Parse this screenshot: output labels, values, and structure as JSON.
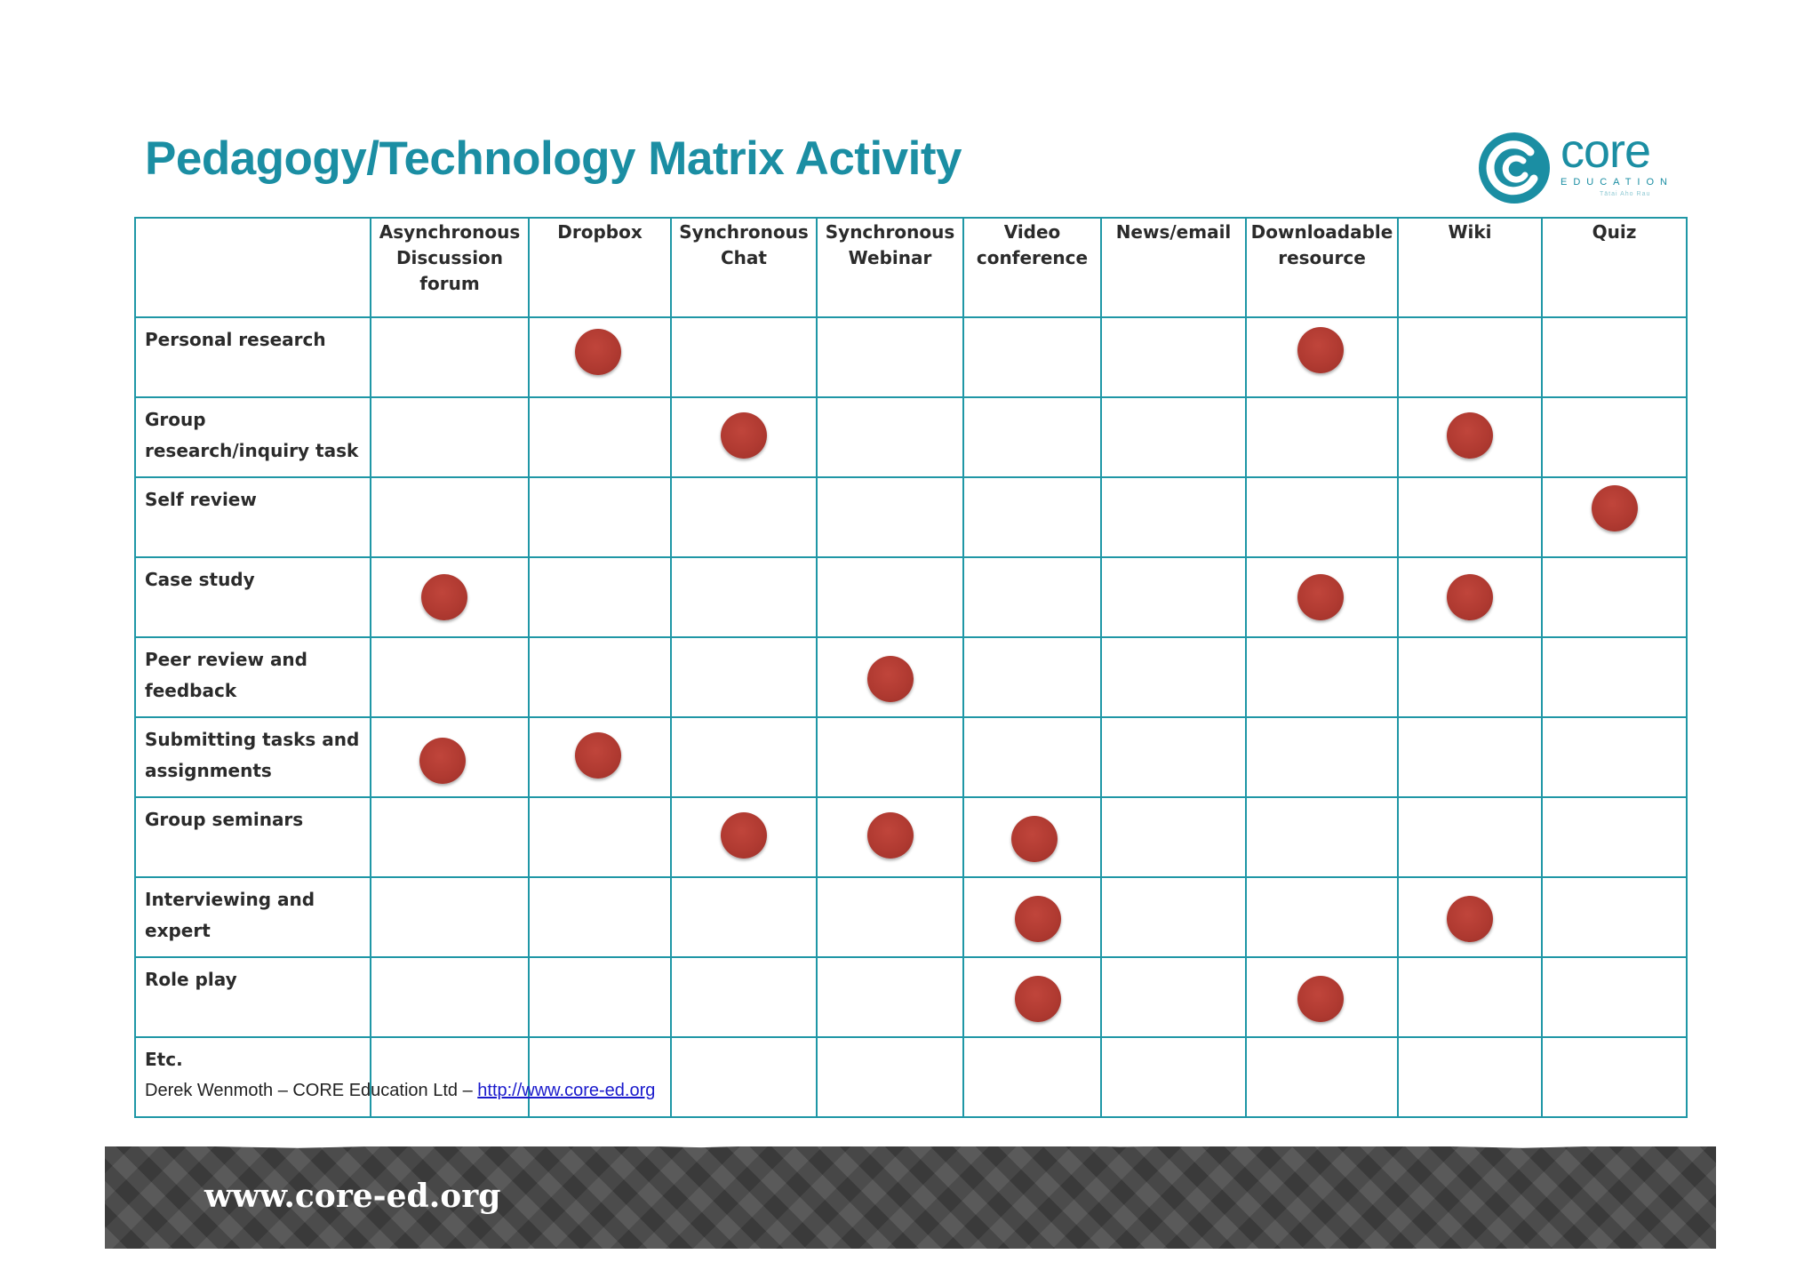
{
  "title": "Pedagogy/Technology Matrix Activity",
  "logo": {
    "word": "core",
    "sub": "EDUCATION",
    "tagline": "Tātai Aho Rau"
  },
  "columns": [
    "Asynchronous Discussion forum",
    "Dropbox",
    "Synchronous Chat",
    "Synchronous Webinar",
    "Video conference",
    "News/email",
    "Downloadable resource",
    "Wiki",
    "Quiz"
  ],
  "rows": [
    {
      "label": "Personal research",
      "marks": [
        false,
        true,
        false,
        false,
        false,
        false,
        true,
        false,
        false
      ]
    },
    {
      "label": "Group research/inquiry task",
      "marks": [
        false,
        false,
        true,
        false,
        false,
        false,
        false,
        true,
        false
      ]
    },
    {
      "label": "Self review",
      "marks": [
        false,
        false,
        false,
        false,
        false,
        false,
        false,
        false,
        true
      ]
    },
    {
      "label": "Case study",
      "marks": [
        true,
        false,
        false,
        false,
        false,
        false,
        true,
        true,
        false
      ]
    },
    {
      "label": "Peer review and feedback",
      "marks": [
        false,
        false,
        false,
        true,
        false,
        false,
        false,
        false,
        false
      ]
    },
    {
      "label": "Submitting tasks and assignments",
      "marks": [
        true,
        true,
        false,
        false,
        false,
        false,
        false,
        false,
        false
      ]
    },
    {
      "label": "Group seminars",
      "marks": [
        false,
        false,
        true,
        true,
        true,
        false,
        false,
        false,
        false
      ]
    },
    {
      "label": "Interviewing and expert",
      "marks": [
        false,
        false,
        false,
        false,
        true,
        false,
        false,
        true,
        false
      ]
    },
    {
      "label": "Role play",
      "marks": [
        false,
        false,
        false,
        false,
        true,
        false,
        true,
        false,
        false
      ]
    },
    {
      "label": "Etc.",
      "marks": [
        false,
        false,
        false,
        false,
        false,
        false,
        false,
        false,
        false
      ]
    }
  ],
  "credit": {
    "text": "Derek Wenmoth – CORE Education Ltd – ",
    "link": "http://www.core-ed.org"
  },
  "banner": {
    "url": "www.core-ed.org"
  },
  "colors": {
    "accent": "#1b8ea3",
    "grid": "#1f97a6",
    "dot": "#b03a31"
  }
}
